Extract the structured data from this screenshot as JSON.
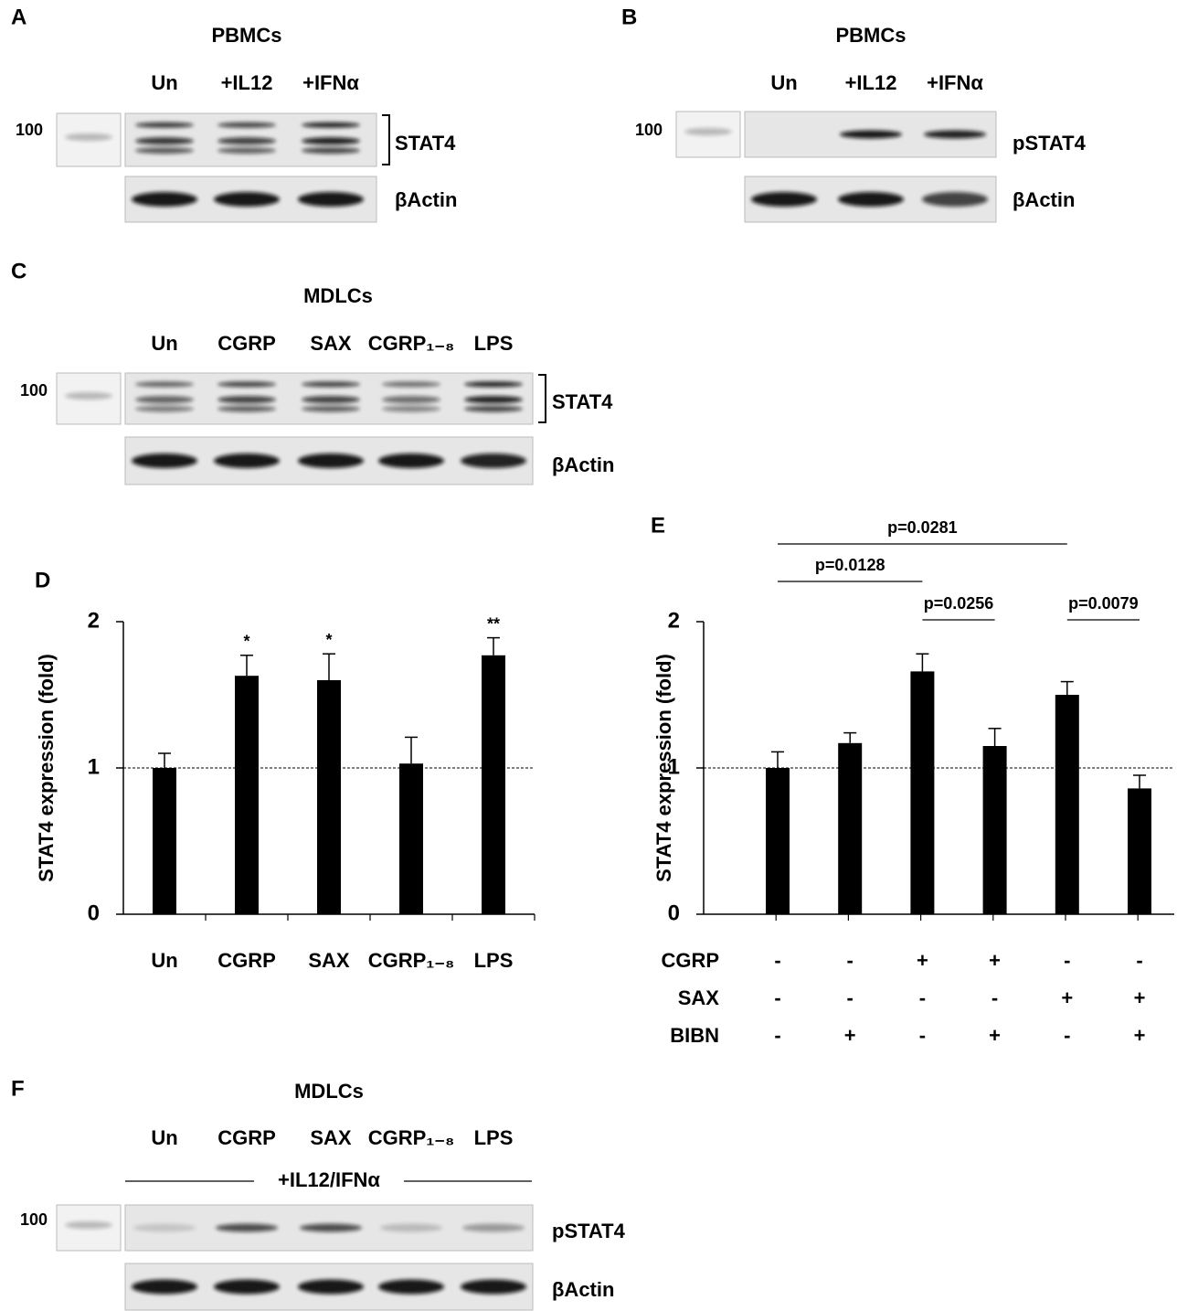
{
  "blots": [
    {
      "letter": "A",
      "title": "PBMCs",
      "lanes": [
        "Un",
        "+IL12",
        "+IFNα"
      ],
      "marker": "100",
      "bands": [
        "STAT4",
        "βActin"
      ]
    },
    {
      "letter": "B",
      "title": "PBMCs",
      "lanes": [
        "Un",
        "+IL12",
        "+IFNα"
      ],
      "marker": "100",
      "bands": [
        "pSTAT4",
        "βActin"
      ]
    },
    {
      "letter": "C",
      "title": "MDLCs",
      "lanes": [
        "Un",
        "CGRP",
        "SAX",
        "CGRP₁₋₈",
        "LPS"
      ],
      "marker": "100",
      "bands": [
        "STAT4",
        "βActin"
      ]
    },
    {
      "letter": "F",
      "title": "MDLCs",
      "lanes": [
        "Un",
        "CGRP",
        "SAX",
        "CGRP₁₋₈",
        "LPS"
      ],
      "treatment": "+IL12/IFNα",
      "marker": "100",
      "bands": [
        "pSTAT4",
        "βActin"
      ]
    }
  ],
  "chart_data": [
    {
      "type": "bar",
      "letter": "D",
      "ylabel": "STAT4 expression (fold)",
      "categories": [
        "Un",
        "CGRP",
        "SAX",
        "CGRP₁₋₈",
        "LPS"
      ],
      "values": [
        1.0,
        1.63,
        1.6,
        1.03,
        1.77
      ],
      "errors": [
        0.1,
        0.14,
        0.18,
        0.18,
        0.12
      ],
      "significance": [
        null,
        "*",
        "*",
        null,
        "**"
      ],
      "color": "#000000",
      "ylim": [
        0,
        2
      ],
      "yticks": [
        0,
        1,
        2
      ],
      "hline": 1
    },
    {
      "type": "bar",
      "letter": "E",
      "ylabel": "STAT4 expression (fold)",
      "values": [
        1.0,
        1.17,
        1.66,
        1.15,
        1.5,
        0.86
      ],
      "errors": [
        0.11,
        0.07,
        0.12,
        0.12,
        0.09,
        0.09
      ],
      "conditions": [
        {
          "name": "CGRP",
          "values": [
            "-",
            "-",
            "+",
            "+",
            "-",
            "-"
          ]
        },
        {
          "name": "SAX",
          "values": [
            "-",
            "-",
            "-",
            "-",
            "+",
            "+"
          ]
        },
        {
          "name": "BIBN",
          "values": [
            "-",
            "+",
            "-",
            "+",
            "-",
            "+"
          ]
        }
      ],
      "comparisons": [
        {
          "pair": [
            0,
            4
          ],
          "label": "p=0.0281"
        },
        {
          "pair": [
            0,
            2
          ],
          "label": "p=0.0128"
        },
        {
          "pair": [
            2,
            3
          ],
          "label": "p=0.0256"
        },
        {
          "pair": [
            4,
            5
          ],
          "label": "p=0.0079"
        }
      ],
      "color": "#000000",
      "ylim": [
        0,
        2
      ],
      "yticks": [
        0,
        1,
        2
      ],
      "hline": 1
    }
  ]
}
